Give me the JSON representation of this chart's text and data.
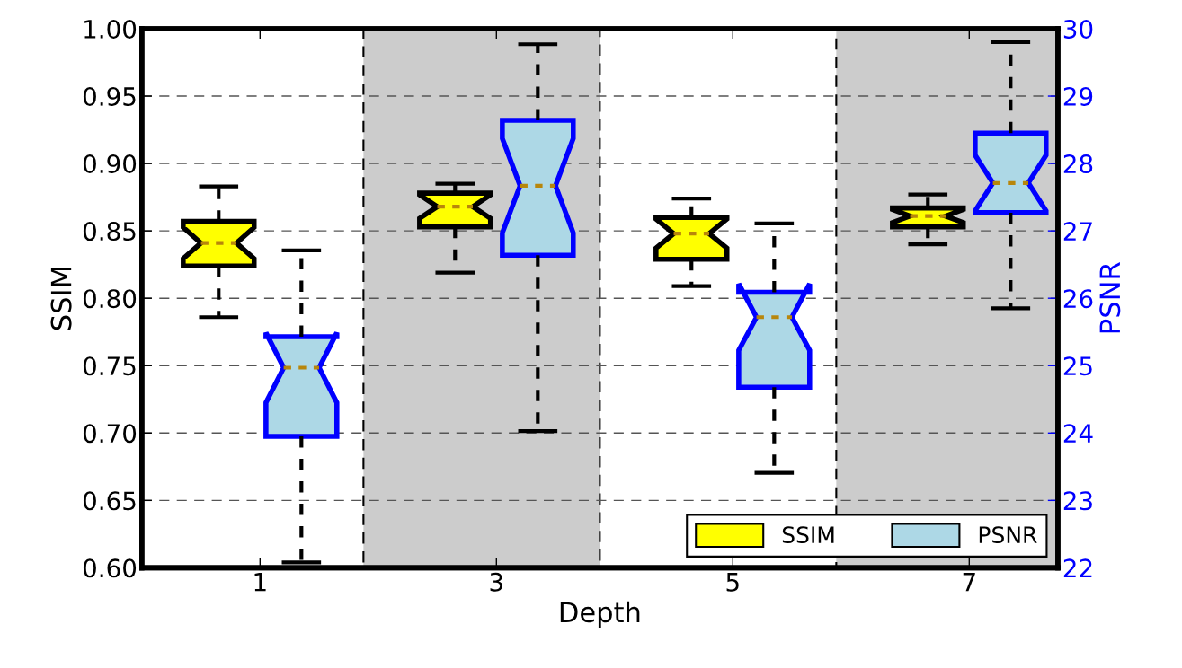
{
  "chart_data": {
    "type": "box",
    "xlabel": "Depth",
    "ylabel": "SSIM",
    "y2label": "PSNR",
    "x": [
      1,
      3,
      5,
      7
    ],
    "xlim": [
      0,
      7.75
    ],
    "xticks": [
      1,
      3,
      5,
      7
    ],
    "ylim": [
      0.6,
      1.0
    ],
    "yticks": [
      {
        "value": 0.6,
        "label": "0.60"
      },
      {
        "value": 0.65,
        "label": "0.65"
      },
      {
        "value": 0.7,
        "label": "0.70"
      },
      {
        "value": 0.75,
        "label": "0.75"
      },
      {
        "value": 0.8,
        "label": "0.80"
      },
      {
        "value": 0.85,
        "label": "0.85"
      },
      {
        "value": 0.9,
        "label": "0.90"
      },
      {
        "value": 0.95,
        "label": "0.95"
      },
      {
        "value": 1.0,
        "label": "1.00"
      }
    ],
    "y2lim": [
      22,
      30
    ],
    "y2ticks": [
      22,
      23,
      24,
      25,
      26,
      27,
      28,
      29,
      30
    ],
    "series": [
      {
        "name": "SSIM",
        "color": "#ffff00",
        "boxes": [
          {
            "low": 0.786,
            "q1": 0.824,
            "median": 0.841,
            "q3": 0.857,
            "high": 0.883
          },
          {
            "low": 0.819,
            "q1": 0.853,
            "median": 0.868,
            "q3": 0.878,
            "high": 0.885
          },
          {
            "low": 0.809,
            "q1": 0.829,
            "median": 0.848,
            "q3": 0.86,
            "high": 0.874
          },
          {
            "low": 0.84,
            "q1": 0.853,
            "median": 0.861,
            "q3": 0.867,
            "high": 0.877
          }
        ]
      },
      {
        "name": "PSNR",
        "color": "#add8e6",
        "axis": "y2",
        "boxes": [
          {
            "low": 22.08,
            "q1": 23.95,
            "median": 24.97,
            "q3": 25.43,
            "high": 26.71
          },
          {
            "low": 24.03,
            "q1": 26.64,
            "median": 27.67,
            "q3": 28.64,
            "high": 29.77
          },
          {
            "low": 23.41,
            "q1": 24.68,
            "median": 25.72,
            "q3": 26.09,
            "high": 27.11
          },
          {
            "low": 25.85,
            "q1": 27.27,
            "median": 27.71,
            "q3": 28.45,
            "high": 29.8
          }
        ]
      }
    ],
    "bands": [
      {
        "axis": "x",
        "from": 1.875,
        "to": 3.875,
        "color": "#cccccc"
      },
      {
        "axis": "x",
        "from": 5.875,
        "to": 7.75,
        "color": "#cccccc"
      }
    ],
    "grid": "y",
    "legend": "bottom right"
  }
}
